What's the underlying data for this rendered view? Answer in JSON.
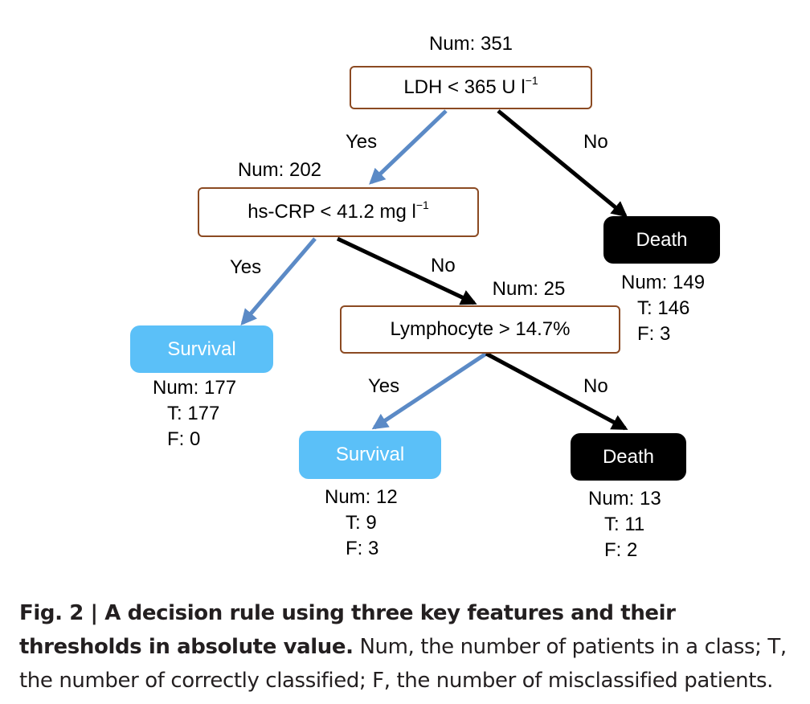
{
  "root": {
    "num": "Num: 351",
    "condition": "LDH < 365 U l",
    "unit_exp": "−1",
    "yes": "Yes",
    "no": "No"
  },
  "node_crp": {
    "num": "Num: 202",
    "condition": "hs-CRP < 41.2 mg l",
    "unit_exp": "−1",
    "yes": "Yes",
    "no": "No"
  },
  "node_lymph": {
    "num": "Num: 25",
    "condition": "Lymphocyte > 14.7%",
    "yes": "Yes",
    "no": "No"
  },
  "leaf_death_1": {
    "label": "Death",
    "num": "Num: 149",
    "t": "T: 146",
    "f": "F: 3"
  },
  "leaf_survival_1": {
    "label": "Survival",
    "num": "Num: 177",
    "t": "T: 177",
    "f": "F: 0"
  },
  "leaf_survival_2": {
    "label": "Survival",
    "num": "Num: 12",
    "t": "T: 9",
    "f": "F: 3"
  },
  "leaf_death_2": {
    "label": "Death",
    "num": "Num: 13",
    "t": "T: 11",
    "f": "F: 2"
  },
  "caption": {
    "title": "Fig. 2 | A decision rule using three key features and their thresholds in absolute value.",
    "body": " Num, the number of patients in a class; T, the number of correctly classified; F, the number of misclassified patients."
  },
  "colors": {
    "decision_border": "#8B4A22",
    "survival": "#5BC0F8",
    "death": "#000000",
    "yes_arrow": "#5B8AC6",
    "no_arrow": "#000000"
  }
}
